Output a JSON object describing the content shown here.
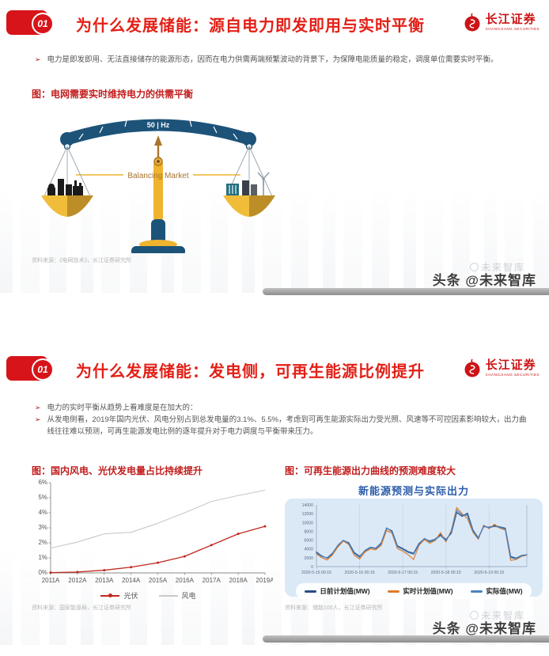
{
  "bullet_marker": "➢",
  "brand": {
    "name": "长江证券",
    "name_en": "CHANGJIANG SECURITIES"
  },
  "slide1": {
    "badge": "01",
    "title": "为什么发展储能：源自电力即发即用与实时平衡",
    "bullets": [
      "电力是即发即用、无法直接储存的能源形态，因而在电力供需两端频繁波动的背景下，为保障电能质量的稳定，调度单位需要实时平衡。"
    ],
    "figure_title": "图：电网需要实时维持电力的供需平衡",
    "scale": {
      "freq": "50 | Hz",
      "market": "Balancing Market"
    },
    "source": "资料来源：《电网技术》，长江证券研究所",
    "watermark": "头条 @未来智库",
    "watermark_ghost": "未来智库"
  },
  "slide2": {
    "badge": "01",
    "title": "为什么发展储能：发电侧，可再生能源比例提升",
    "bullets": [
      "电力的实时平衡从趋势上看难度是在加大的：",
      "从发电侧看，2019年国内光伏、风电分别占到总发电量的3.1%、5.5%，考虑到可再生能源实际出力受光照、风速等不可控因素影响较大，出力曲线往往难以预测，可再生能源发电比例的逐年提升对于电力调度与平衡带来压力。"
    ],
    "figure_left_title": "图：国内风电、光伏发电量占比持续提升",
    "figure_right_title": "图：可再生能源出力曲线的预测难度较大",
    "source_left": "资料来源：国家能源局，长江证券研究所",
    "source_right": "资料来源：储能100人，长江证券研究所",
    "watermark": "头条 @未来智库",
    "watermark_ghost": "未来智库"
  },
  "chart_data": [
    {
      "type": "line",
      "title": "",
      "categories": [
        "2011A",
        "2012A",
        "2013A",
        "2014A",
        "2015A",
        "2016A",
        "2017A",
        "2018A",
        "2019A"
      ],
      "ylim": [
        0,
        6
      ],
      "yticks": [
        0,
        1,
        2,
        3,
        4,
        5,
        6
      ],
      "ytick_suffix": "%",
      "grid": false,
      "legend_position": "bottom",
      "series": [
        {
          "name": "光伏",
          "color": "#c0281e",
          "width": 1.3,
          "marker": true,
          "values": [
            0.02,
            0.06,
            0.18,
            0.38,
            0.68,
            1.1,
            1.85,
            2.6,
            3.1
          ]
        },
        {
          "name": "风电",
          "color": "#c9c9c9",
          "width": 1.1,
          "marker": false,
          "values": [
            1.65,
            2.05,
            2.6,
            2.7,
            3.3,
            4.0,
            4.75,
            5.15,
            5.5
          ]
        }
      ]
    },
    {
      "type": "line",
      "title": "新能源预测与实际出力",
      "x_count": 40,
      "xticks": [
        {
          "pos": 0,
          "label": "2020-5-15 00:15"
        },
        {
          "pos": 8,
          "label": "2020-5-16 00:15"
        },
        {
          "pos": 16,
          "label": "2020-5-17 00:15"
        },
        {
          "pos": 24,
          "label": "2020-5-18 00:15"
        },
        {
          "pos": 32,
          "label": "2020-5-19 00:15"
        }
      ],
      "ylim": [
        0,
        14000
      ],
      "yticks": [
        0,
        2000,
        4000,
        6000,
        8000,
        10000,
        12000,
        14000
      ],
      "ytick_suffix": "",
      "grid": true,
      "legend_position": "bottom",
      "series": [
        {
          "name": "日前计划值(MW)",
          "color": "#2b4d80",
          "width": 1.3,
          "marker": false,
          "values": [
            3300,
            2400,
            1900,
            2900,
            4700,
            5900,
            5400,
            3200,
            2300,
            3600,
            4300,
            4100,
            5200,
            8700,
            8100,
            4700,
            4100,
            3400,
            3000,
            5200,
            6300,
            5800,
            6200,
            7300,
            6100,
            7600,
            12300,
            11400,
            12100,
            8300,
            6500,
            9100,
            8900,
            9300,
            9000,
            8700,
            2300,
            1900,
            2500,
            2700
          ]
        },
        {
          "name": "实时计划值(MW)",
          "color": "#e07b2a",
          "width": 1.2,
          "marker": false,
          "values": [
            2900,
            2000,
            1500,
            2700,
            4500,
            5800,
            5000,
            2600,
            1700,
            3300,
            4000,
            3800,
            4800,
            8200,
            7600,
            4100,
            3500,
            2700,
            1600,
            4800,
            6100,
            5300,
            5900,
            7700,
            5600,
            8200,
            13400,
            12000,
            10900,
            7800,
            6200,
            9400,
            8600,
            9600,
            8700,
            8300,
            1400,
            1600,
            2300,
            2600
          ]
        },
        {
          "name": "实际值(MW)",
          "color": "#4b83bd",
          "width": 1.2,
          "marker": false,
          "values": [
            3100,
            2300,
            2000,
            3100,
            4900,
            6000,
            5200,
            3000,
            2100,
            3700,
            4400,
            4200,
            5400,
            8800,
            7900,
            4500,
            3900,
            3200,
            2800,
            5000,
            6400,
            5600,
            6100,
            7000,
            5900,
            7900,
            12800,
            11700,
            11600,
            8100,
            6400,
            9200,
            8800,
            9100,
            8900,
            8500,
            2000,
            1800,
            2400,
            2700
          ]
        }
      ]
    }
  ]
}
